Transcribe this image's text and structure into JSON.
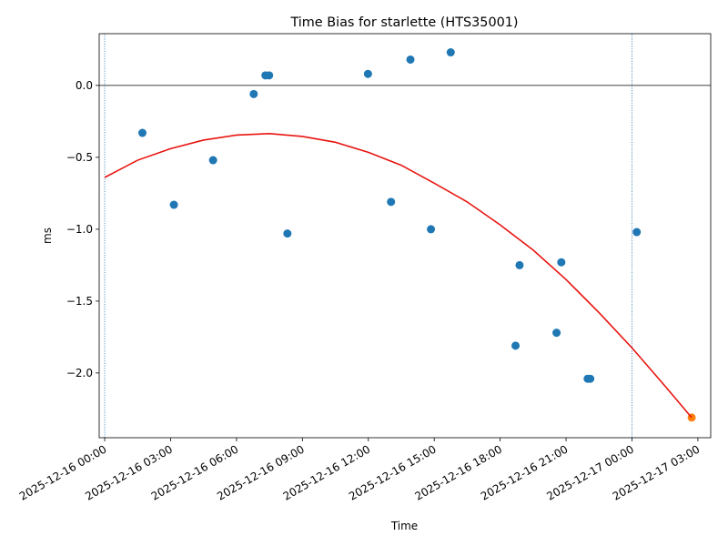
{
  "chart_data": {
    "type": "scatter",
    "title": "Time Bias for starlette (HTS35001)",
    "xlabel": "Time",
    "ylabel": "ms",
    "x_axis_type": "datetime",
    "xlim": [
      "2025-12-15T23:45",
      "2025-12-17T03:35"
    ],
    "ylim": [
      -2.45,
      0.36
    ],
    "x_ticks": [
      {
        "value": "2025-12-16T00:00",
        "label": "2025-12-16 00:00"
      },
      {
        "value": "2025-12-16T03:00",
        "label": "2025-12-16 03:00"
      },
      {
        "value": "2025-12-16T06:00",
        "label": "2025-12-16 06:00"
      },
      {
        "value": "2025-12-16T09:00",
        "label": "2025-12-16 09:00"
      },
      {
        "value": "2025-12-16T12:00",
        "label": "2025-12-16 12:00"
      },
      {
        "value": "2025-12-16T15:00",
        "label": "2025-12-16 15:00"
      },
      {
        "value": "2025-12-16T18:00",
        "label": "2025-12-16 18:00"
      },
      {
        "value": "2025-12-16T21:00",
        "label": "2025-12-16 21:00"
      },
      {
        "value": "2025-12-17T00:00",
        "label": "2025-12-17 00:00"
      },
      {
        "value": "2025-12-17T03:00",
        "label": "2025-12-17 03:00"
      }
    ],
    "y_ticks": [
      {
        "value": 0.0,
        "label": "0.0"
      },
      {
        "value": -0.5,
        "label": "−0.5"
      },
      {
        "value": -1.0,
        "label": "−1.0"
      },
      {
        "value": -1.5,
        "label": "−1.5"
      },
      {
        "value": -2.0,
        "label": "−2.0"
      }
    ],
    "grid": false,
    "x_tick_rotation": 30,
    "horizontal_reference_line": {
      "y": 0.0,
      "color": "#000000"
    },
    "vertical_reference_lines": [
      {
        "x": "2025-12-16T00:00",
        "color": "#1f77b4",
        "style": "dotted"
      },
      {
        "x": "2025-12-17T00:00",
        "color": "#1f77b4",
        "style": "dotted"
      }
    ],
    "series": [
      {
        "kind": "scatter",
        "color": "#1f77b4",
        "points": [
          {
            "x": "2025-12-16T01:43",
            "y": -0.33
          },
          {
            "x": "2025-12-16T03:09",
            "y": -0.83
          },
          {
            "x": "2025-12-16T04:56",
            "y": -0.52
          },
          {
            "x": "2025-12-16T06:47",
            "y": -0.06
          },
          {
            "x": "2025-12-16T07:19",
            "y": 0.07
          },
          {
            "x": "2025-12-16T07:29",
            "y": 0.07
          },
          {
            "x": "2025-12-16T08:19",
            "y": -1.03
          },
          {
            "x": "2025-12-16T11:59",
            "y": 0.08
          },
          {
            "x": "2025-12-16T13:02",
            "y": -0.81
          },
          {
            "x": "2025-12-16T13:55",
            "y": 0.18
          },
          {
            "x": "2025-12-16T14:51",
            "y": -1.0
          },
          {
            "x": "2025-12-16T15:45",
            "y": 0.23
          },
          {
            "x": "2025-12-16T18:42",
            "y": -1.81
          },
          {
            "x": "2025-12-16T18:53",
            "y": -1.25
          },
          {
            "x": "2025-12-16T20:34",
            "y": -1.72
          },
          {
            "x": "2025-12-16T20:47",
            "y": -1.23
          },
          {
            "x": "2025-12-16T21:59",
            "y": -2.04
          },
          {
            "x": "2025-12-16T22:06",
            "y": -2.04
          },
          {
            "x": "2025-12-17T00:13",
            "y": -1.02
          }
        ]
      },
      {
        "kind": "scatter",
        "color": "#ff7f0e",
        "points": [
          {
            "x": "2025-12-17T02:43",
            "y": -2.31
          }
        ]
      },
      {
        "kind": "line",
        "color": "#e8140f",
        "points": [
          {
            "x": "2025-12-16T00:00",
            "y": -0.64
          },
          {
            "x": "2025-12-16T01:30",
            "y": -0.52
          },
          {
            "x": "2025-12-16T03:00",
            "y": -0.44
          },
          {
            "x": "2025-12-16T04:30",
            "y": -0.38
          },
          {
            "x": "2025-12-16T06:00",
            "y": -0.345
          },
          {
            "x": "2025-12-16T07:30",
            "y": -0.335
          },
          {
            "x": "2025-12-16T09:00",
            "y": -0.355
          },
          {
            "x": "2025-12-16T10:30",
            "y": -0.395
          },
          {
            "x": "2025-12-16T12:00",
            "y": -0.465
          },
          {
            "x": "2025-12-16T13:30",
            "y": -0.555
          },
          {
            "x": "2025-12-16T15:00",
            "y": -0.68
          },
          {
            "x": "2025-12-16T16:30",
            "y": -0.81
          },
          {
            "x": "2025-12-16T18:00",
            "y": -0.97
          },
          {
            "x": "2025-12-16T19:30",
            "y": -1.145
          },
          {
            "x": "2025-12-16T21:00",
            "y": -1.35
          },
          {
            "x": "2025-12-16T22:30",
            "y": -1.58
          },
          {
            "x": "2025-12-17T00:00",
            "y": -1.825
          },
          {
            "x": "2025-12-17T01:30",
            "y": -2.09
          },
          {
            "x": "2025-12-17T02:43",
            "y": -2.31
          }
        ]
      }
    ]
  }
}
